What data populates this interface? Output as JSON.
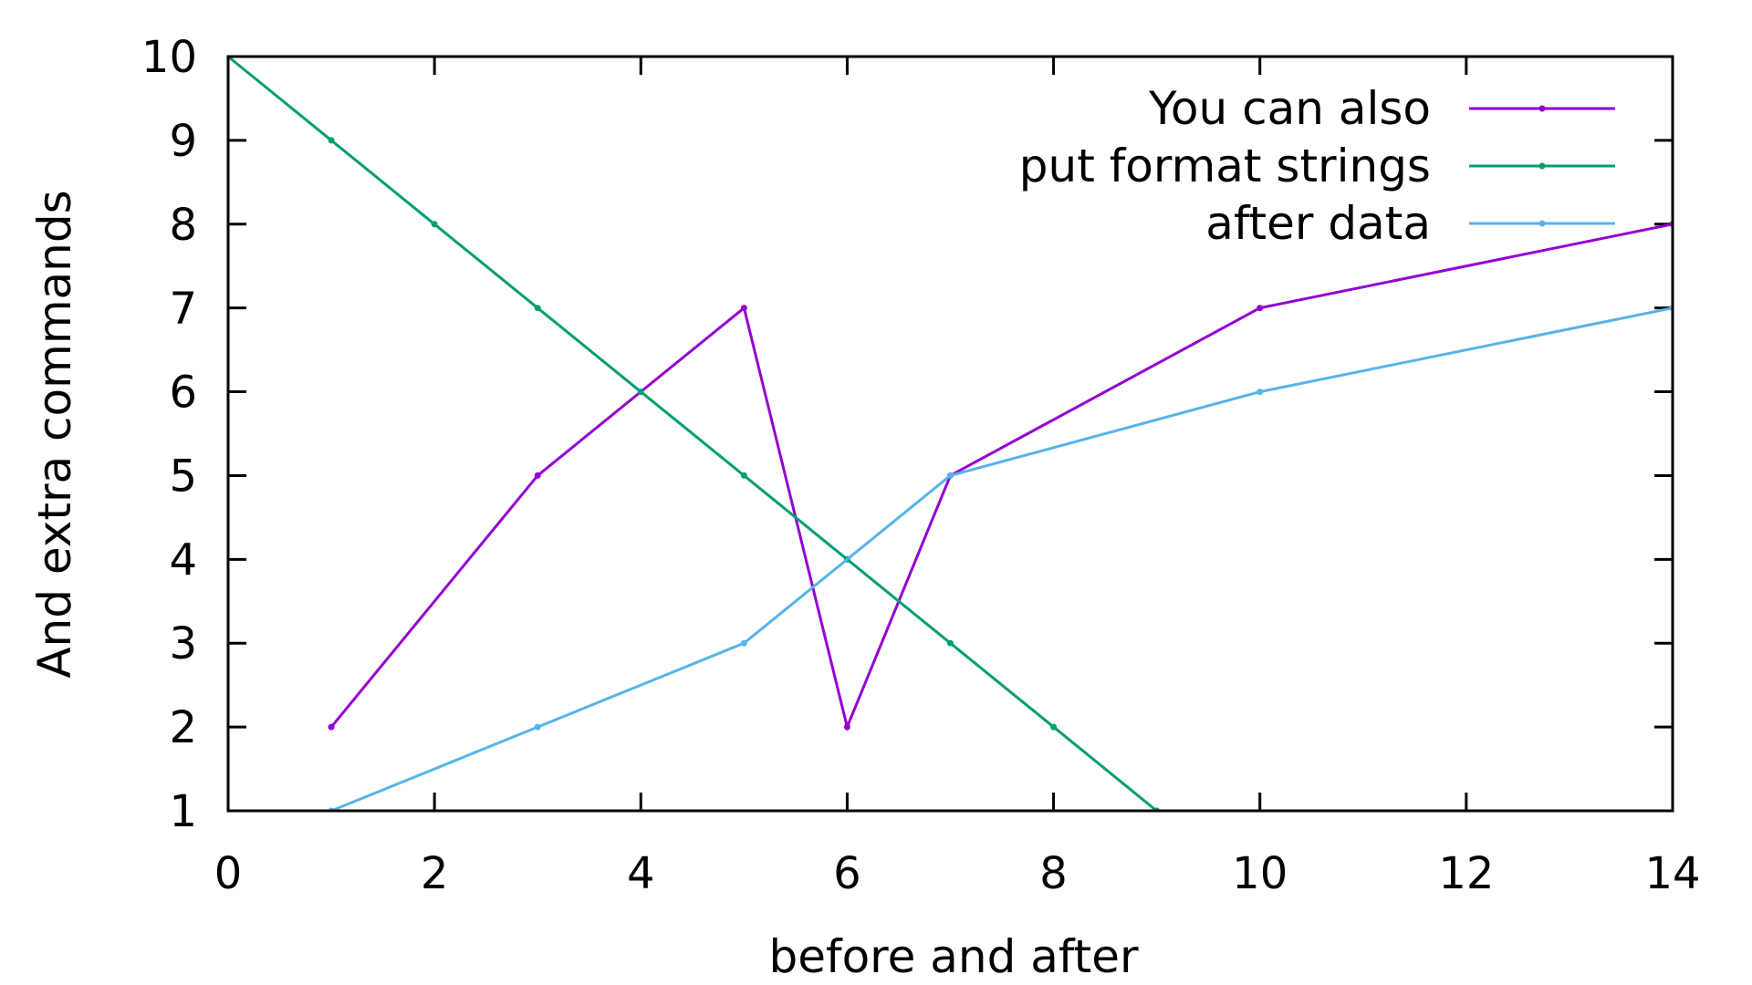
{
  "chart_data": {
    "type": "line",
    "title": "",
    "xlabel": "before and after",
    "ylabel": "And extra commands",
    "xlim": [
      0,
      14
    ],
    "ylim": [
      1,
      10
    ],
    "xticks": [
      0,
      2,
      4,
      6,
      8,
      10,
      12,
      14
    ],
    "yticks": [
      1,
      2,
      3,
      4,
      5,
      6,
      7,
      8,
      9,
      10
    ],
    "grid": false,
    "legend_position": "top-right",
    "series": [
      {
        "name": "You can also",
        "color": "#9400d3",
        "x": [
          1,
          3,
          5,
          6,
          7,
          10,
          14
        ],
        "y": [
          2,
          5,
          7,
          2,
          5,
          7,
          8
        ]
      },
      {
        "name": "put format strings",
        "color": "#009e73",
        "x": [
          0,
          1,
          2,
          3,
          4,
          5,
          6,
          7,
          8,
          9
        ],
        "y": [
          10,
          9,
          8,
          7,
          6,
          5,
          4,
          3,
          2,
          1
        ]
      },
      {
        "name": "after data",
        "color": "#56b4e9",
        "x": [
          1,
          3,
          5,
          7,
          10,
          14
        ],
        "y": [
          1,
          2,
          3,
          5,
          6,
          7
        ]
      }
    ]
  }
}
